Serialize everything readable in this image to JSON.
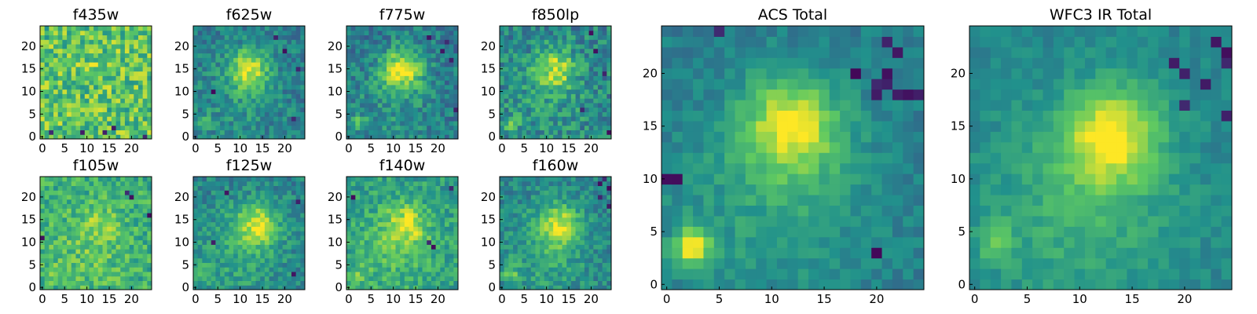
{
  "figure": {
    "colormap": "viridis",
    "colormap_stops": [
      "#440154",
      "#3b528b",
      "#21918c",
      "#5ec962",
      "#fde725"
    ],
    "axis_color": "#000000"
  },
  "chart_data": [
    {
      "type": "heatmap",
      "title": "f435w",
      "grid_size": 25,
      "xlim": [
        0,
        24
      ],
      "ylim": [
        0,
        24
      ],
      "xticks": [
        "0",
        "5",
        "10",
        "15",
        "20"
      ],
      "yticks": [
        "0",
        "5",
        "10",
        "15",
        "20"
      ],
      "signal": 0.05,
      "noise_level": 0.22,
      "base_level": 0.72,
      "peak_center": [
        12,
        15
      ],
      "secondary_peak": [
        2,
        3
      ],
      "secondary_amp": 0.0,
      "extended_amp": 0.0,
      "extended_center": [
        10,
        8
      ],
      "dark_pixels": [
        [
          9,
          1
        ],
        [
          14,
          1
        ],
        [
          2,
          1
        ],
        [
          23,
          0
        ],
        [
          16,
          2
        ]
      ]
    },
    {
      "type": "heatmap",
      "title": "f625w",
      "grid_size": 25,
      "xlim": [
        0,
        24
      ],
      "ylim": [
        0,
        24
      ],
      "xticks": [
        "0",
        "5",
        "10",
        "15",
        "20"
      ],
      "yticks": [
        "0",
        "5",
        "10",
        "15",
        "20"
      ],
      "signal": 0.45,
      "noise_level": 0.14,
      "base_level": 0.42,
      "peak_center": [
        12,
        15
      ],
      "secondary_peak": [
        2,
        3
      ],
      "secondary_amp": 0.25,
      "extended_amp": 0.1,
      "extended_center": [
        10,
        8
      ],
      "dark_pixels": [
        [
          18,
          22
        ],
        [
          23,
          15
        ],
        [
          22,
          4
        ],
        [
          4,
          10
        ],
        [
          20,
          19
        ]
      ]
    },
    {
      "type": "heatmap",
      "title": "f775w",
      "grid_size": 25,
      "xlim": [
        0,
        24
      ],
      "ylim": [
        0,
        24
      ],
      "xticks": [
        "0",
        "5",
        "10",
        "15",
        "20"
      ],
      "yticks": [
        "0",
        "5",
        "10",
        "15",
        "20"
      ],
      "signal": 0.5,
      "noise_level": 0.15,
      "base_level": 0.4,
      "peak_center": [
        12,
        15
      ],
      "secondary_peak": [
        2,
        3
      ],
      "secondary_amp": 0.25,
      "extended_amp": 0.12,
      "extended_center": [
        10,
        8
      ],
      "dark_pixels": [
        [
          23,
          17
        ],
        [
          21,
          19
        ],
        [
          24,
          6
        ],
        [
          18,
          22
        ],
        [
          22,
          21
        ]
      ]
    },
    {
      "type": "heatmap",
      "title": "f850lp",
      "grid_size": 25,
      "xlim": [
        0,
        24
      ],
      "ylim": [
        0,
        24
      ],
      "xticks": [
        "0",
        "5",
        "10",
        "15",
        "20"
      ],
      "yticks": [
        "0",
        "5",
        "10",
        "15",
        "20"
      ],
      "signal": 0.4,
      "noise_level": 0.17,
      "base_level": 0.45,
      "peak_center": [
        12,
        15
      ],
      "secondary_peak": [
        2,
        3
      ],
      "secondary_amp": 0.2,
      "extended_amp": 0.1,
      "extended_center": [
        10,
        8
      ],
      "dark_pixels": [
        [
          23,
          14
        ],
        [
          21,
          19
        ],
        [
          20,
          23
        ],
        [
          24,
          1
        ],
        [
          18,
          6
        ]
      ]
    },
    {
      "type": "heatmap",
      "title": "f105w",
      "grid_size": 25,
      "xlim": [
        0,
        24
      ],
      "ylim": [
        0,
        24
      ],
      "xticks": [
        "0",
        "5",
        "10",
        "15",
        "20"
      ],
      "yticks": [
        "0",
        "5",
        "10",
        "15",
        "20"
      ],
      "signal": 0.15,
      "noise_level": 0.16,
      "base_level": 0.62,
      "peak_center": [
        13,
        14
      ],
      "secondary_peak": [
        2,
        3
      ],
      "secondary_amp": 0.1,
      "extended_amp": 0.1,
      "extended_center": [
        10,
        8
      ],
      "dark_pixels": [
        [
          0,
          11
        ],
        [
          24,
          16
        ],
        [
          20,
          20
        ],
        [
          19,
          21
        ]
      ]
    },
    {
      "type": "heatmap",
      "title": "f125w",
      "grid_size": 25,
      "xlim": [
        0,
        24
      ],
      "ylim": [
        0,
        24
      ],
      "xticks": [
        "0",
        "5",
        "10",
        "15",
        "20"
      ],
      "yticks": [
        "0",
        "5",
        "10",
        "15",
        "20"
      ],
      "signal": 0.42,
      "noise_level": 0.13,
      "base_level": 0.45,
      "peak_center": [
        14,
        14
      ],
      "secondary_peak": [
        2,
        3
      ],
      "secondary_amp": 0.2,
      "extended_amp": 0.15,
      "extended_center": [
        10,
        8
      ],
      "dark_pixels": [
        [
          7,
          21
        ],
        [
          4,
          10
        ],
        [
          23,
          19
        ],
        [
          22,
          3
        ]
      ]
    },
    {
      "type": "heatmap",
      "title": "f140w",
      "grid_size": 25,
      "xlim": [
        0,
        24
      ],
      "ylim": [
        0,
        24
      ],
      "xticks": [
        "0",
        "5",
        "10",
        "15",
        "20"
      ],
      "yticks": [
        "0",
        "5",
        "10",
        "15",
        "20"
      ],
      "signal": 0.3,
      "noise_level": 0.14,
      "base_level": 0.55,
      "peak_center": [
        13,
        14
      ],
      "secondary_peak": [
        2,
        3
      ],
      "secondary_amp": 0.15,
      "extended_amp": 0.15,
      "extended_center": [
        10,
        8
      ],
      "dark_pixels": [
        [
          1,
          20
        ],
        [
          18,
          10
        ],
        [
          19,
          9
        ],
        [
          23,
          22
        ]
      ]
    },
    {
      "type": "heatmap",
      "title": "f160w",
      "grid_size": 25,
      "xlim": [
        0,
        24
      ],
      "ylim": [
        0,
        24
      ],
      "xticks": [
        "0",
        "5",
        "10",
        "15",
        "20"
      ],
      "yticks": [
        "0",
        "5",
        "10",
        "15",
        "20"
      ],
      "signal": 0.4,
      "noise_level": 0.13,
      "base_level": 0.45,
      "peak_center": [
        13,
        14
      ],
      "secondary_peak": [
        2,
        3
      ],
      "secondary_amp": 0.25,
      "extended_amp": 0.15,
      "extended_center": [
        10,
        8
      ],
      "dark_pixels": [
        [
          23,
          24
        ],
        [
          24,
          22
        ],
        [
          22,
          23
        ],
        [
          24,
          18
        ],
        [
          22,
          20
        ]
      ]
    },
    {
      "type": "heatmap",
      "title": "ACS Total",
      "grid_size": 25,
      "xlim": [
        0,
        24
      ],
      "ylim": [
        0,
        24
      ],
      "xticks": [
        "0",
        "5",
        "10",
        "15",
        "20"
      ],
      "yticks": [
        "0",
        "5",
        "10",
        "15",
        "20"
      ],
      "signal": 0.5,
      "noise_level": 0.08,
      "base_level": 0.42,
      "peak_center": [
        12,
        15
      ],
      "secondary_peak": [
        2.5,
        3.5
      ],
      "secondary_amp": 0.5,
      "extended_amp": 0.15,
      "extended_center": [
        10,
        8
      ],
      "dark_pixels": [
        [
          20,
          19
        ],
        [
          21,
          19
        ],
        [
          22,
          18
        ],
        [
          23,
          18
        ],
        [
          24,
          18
        ],
        [
          20,
          18
        ],
        [
          21,
          20
        ],
        [
          22,
          22
        ],
        [
          21,
          23
        ],
        [
          18,
          20
        ],
        [
          0,
          10
        ],
        [
          1,
          10
        ],
        [
          5,
          24
        ],
        [
          20,
          3
        ]
      ]
    },
    {
      "type": "heatmap",
      "title": "WFC3 IR Total",
      "grid_size": 25,
      "xlim": [
        0,
        24
      ],
      "ylim": [
        0,
        24
      ],
      "xticks": [
        "0",
        "5",
        "10",
        "15",
        "20"
      ],
      "yticks": [
        "0",
        "5",
        "10",
        "15",
        "20"
      ],
      "signal": 0.5,
      "noise_level": 0.07,
      "base_level": 0.45,
      "peak_center": [
        13,
        14
      ],
      "secondary_peak": [
        2,
        4
      ],
      "secondary_amp": 0.2,
      "extended_amp": 0.18,
      "extended_center": [
        10,
        7
      ],
      "dark_pixels": [
        [
          24,
          22
        ],
        [
          24,
          21
        ],
        [
          23,
          23
        ],
        [
          19,
          21
        ],
        [
          20,
          20
        ],
        [
          24,
          16
        ],
        [
          22,
          19
        ],
        [
          20,
          17
        ]
      ]
    }
  ]
}
